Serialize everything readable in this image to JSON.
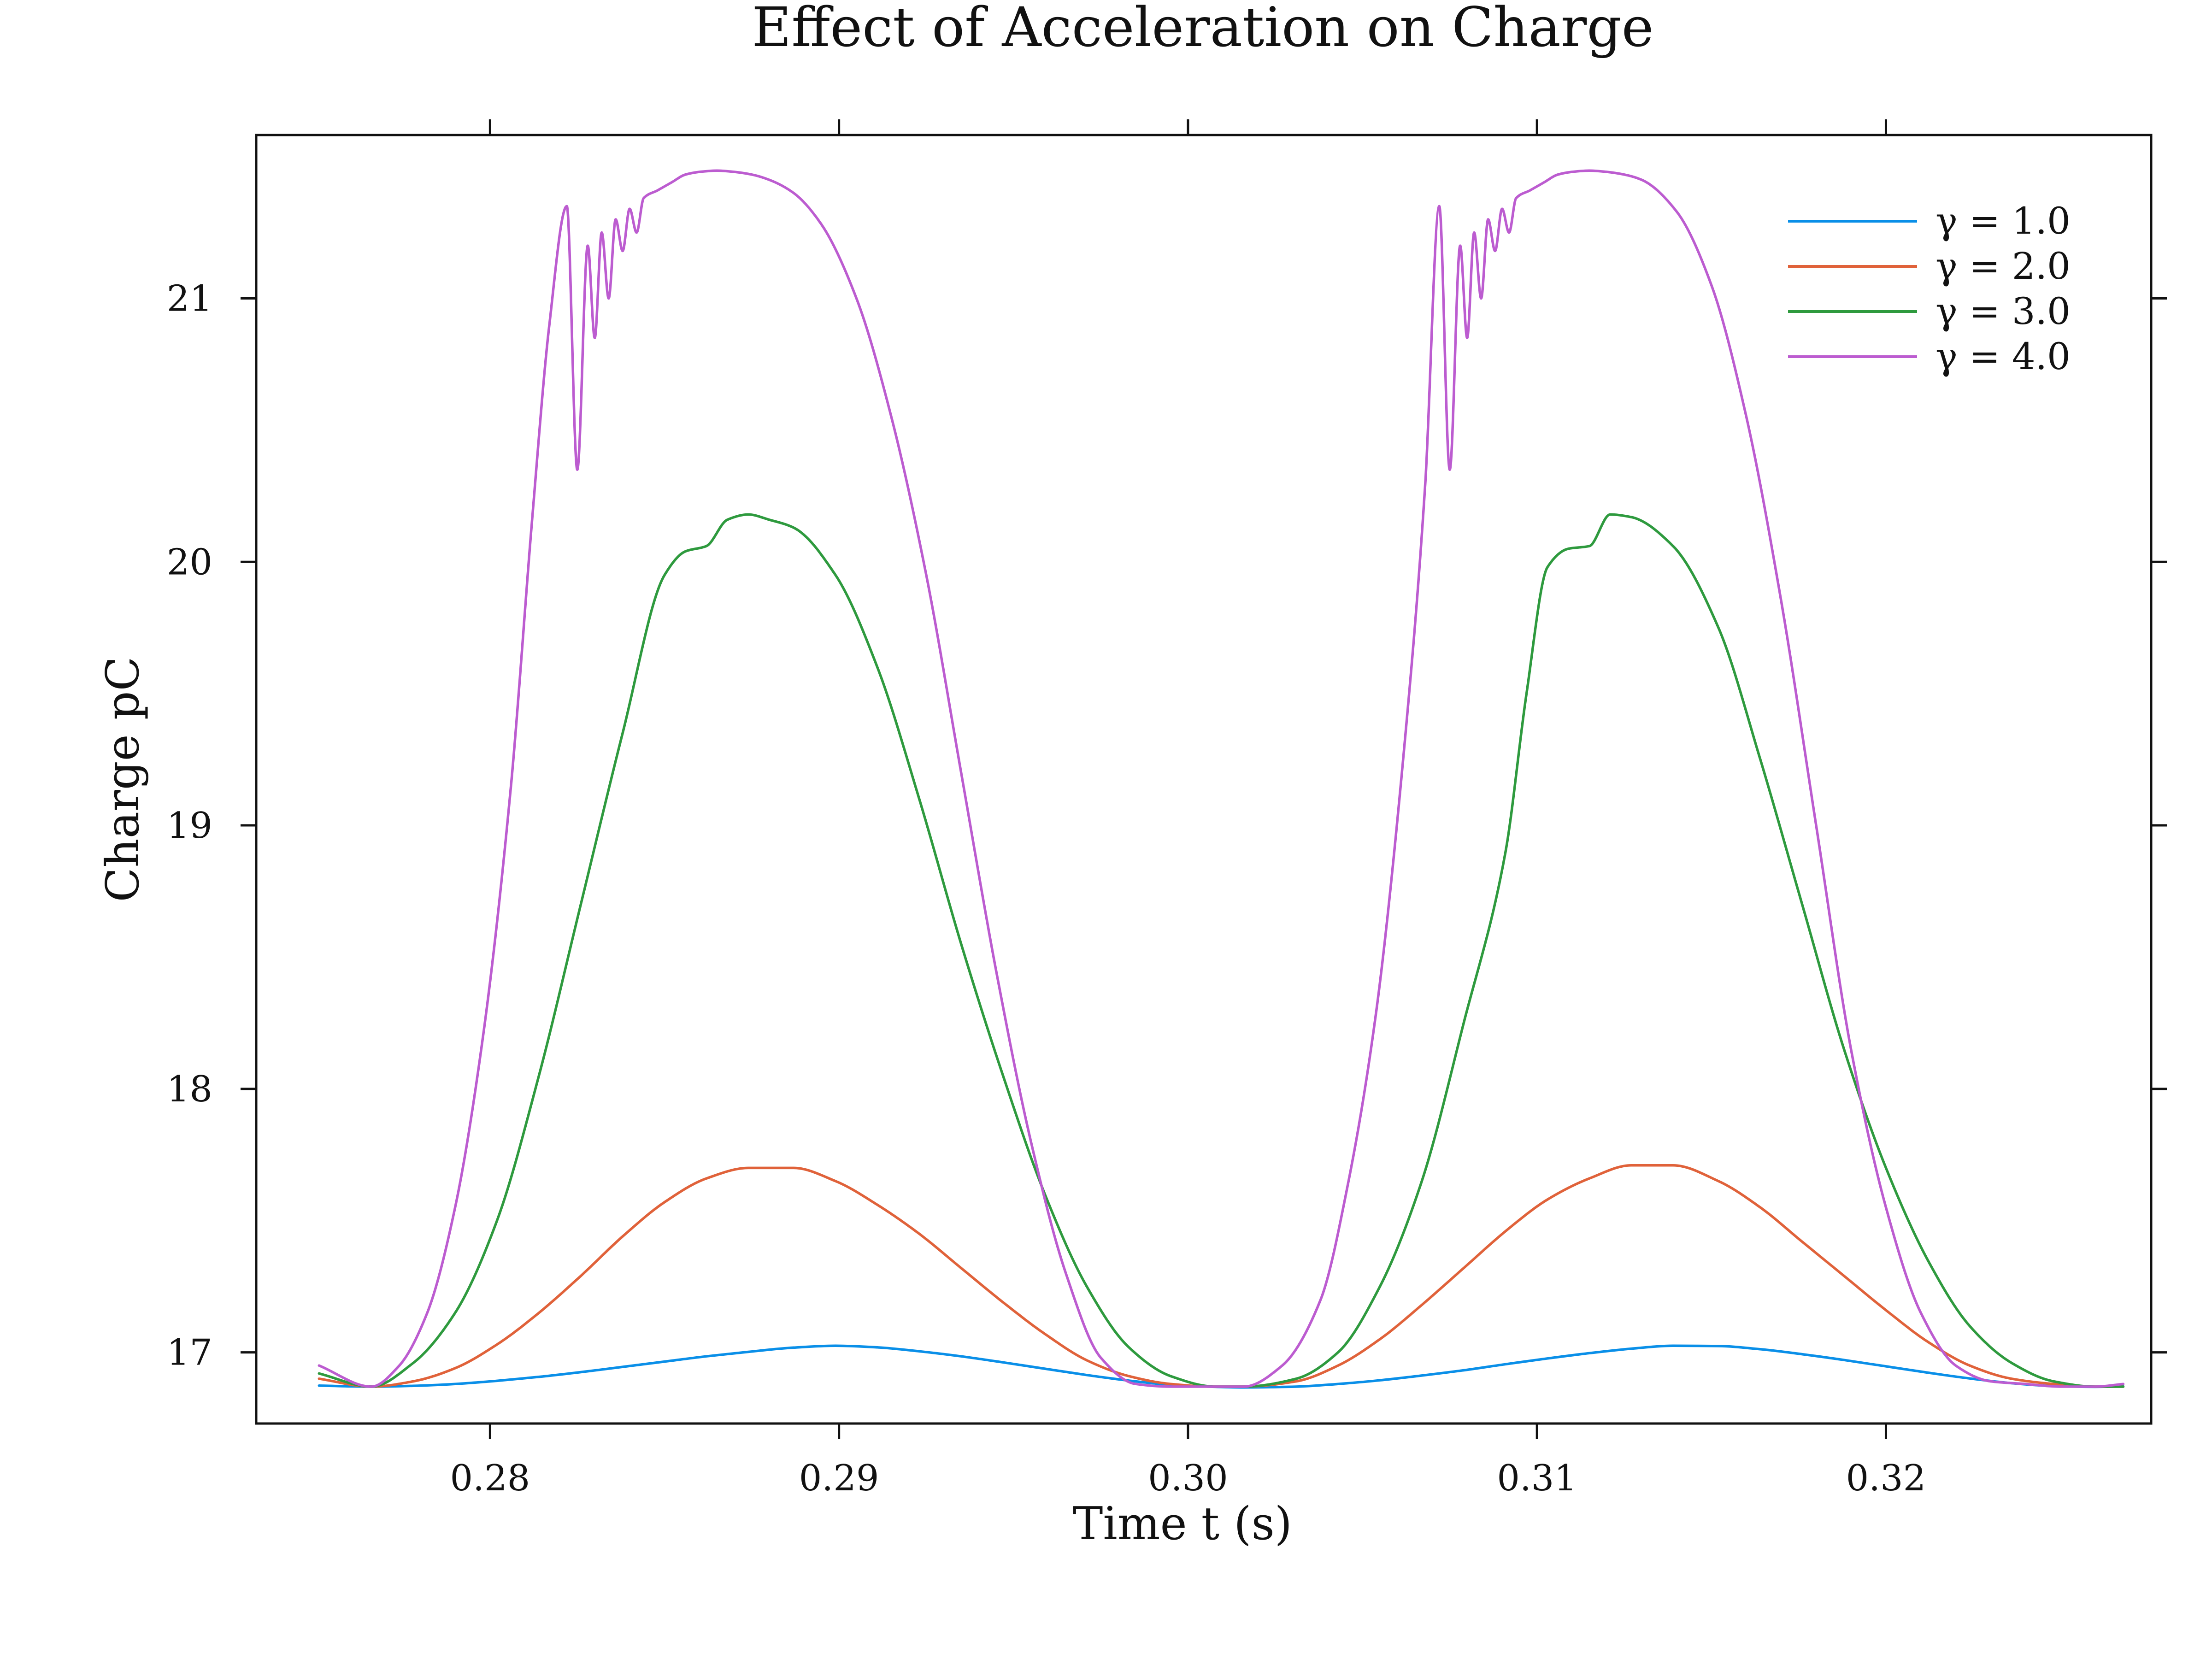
{
  "chart_data": {
    "type": "line",
    "title": "Effect of Acceleration on Charge",
    "xlabel": "Time t (s)",
    "ylabel": "Charge pC",
    "xlim": [
      0.2733,
      0.3276
    ],
    "ylim": [
      16.73,
      21.62
    ],
    "xticks": [
      0.28,
      0.29,
      0.3,
      0.31,
      0.32
    ],
    "xtick_labels": [
      "0.28",
      "0.29",
      "0.30",
      "0.31",
      "0.32"
    ],
    "yticks": [
      17,
      18,
      19,
      20,
      21
    ],
    "ytick_labels": [
      "17",
      "18",
      "19",
      "20",
      "21"
    ],
    "grid": false,
    "legend_position": "top-right",
    "series": [
      {
        "name": "γ = 1.0",
        "color": "#0a8fe8",
        "x": [
          0.2751,
          0.2766,
          0.2778,
          0.279,
          0.2802,
          0.2814,
          0.2826,
          0.2838,
          0.285,
          0.2862,
          0.2874,
          0.2887,
          0.2899,
          0.2911,
          0.2923,
          0.2935,
          0.2947,
          0.2959,
          0.2971,
          0.2983,
          0.2995,
          0.3008,
          0.3016,
          0.3031,
          0.3043,
          0.3055,
          0.3067,
          0.3079,
          0.3091,
          0.3103,
          0.3115,
          0.3127,
          0.3139,
          0.3152,
          0.3164,
          0.3176,
          0.3188,
          0.32,
          0.3212,
          0.3224,
          0.3236,
          0.3248,
          0.326,
          0.3268
        ],
        "y": [
          16.874,
          16.87,
          16.873,
          16.88,
          16.892,
          16.907,
          16.925,
          16.945,
          16.965,
          16.985,
          17.002,
          17.018,
          17.025,
          17.019,
          17.004,
          16.985,
          16.962,
          16.938,
          16.914,
          16.893,
          16.877,
          16.869,
          16.867,
          16.87,
          16.88,
          16.894,
          16.912,
          16.932,
          16.955,
          16.977,
          16.997,
          17.014,
          17.025,
          17.024,
          17.012,
          16.993,
          16.971,
          16.947,
          16.923,
          16.901,
          16.883,
          16.872,
          16.869,
          16.871
        ]
      },
      {
        "name": "γ = 2.0",
        "color": "#e0623a",
        "x": [
          0.2751,
          0.2766,
          0.2778,
          0.279,
          0.2802,
          0.2814,
          0.2826,
          0.2838,
          0.285,
          0.2862,
          0.2874,
          0.2887,
          0.2899,
          0.2911,
          0.2923,
          0.2935,
          0.2947,
          0.2959,
          0.2971,
          0.2983,
          0.2995,
          0.3008,
          0.3016,
          0.3031,
          0.3043,
          0.3055,
          0.3067,
          0.3079,
          0.3091,
          0.3103,
          0.3115,
          0.3127,
          0.3139,
          0.3152,
          0.3164,
          0.3176,
          0.3188,
          0.32,
          0.3212,
          0.3224,
          0.3236,
          0.3248,
          0.326,
          0.3268
        ],
        "y": [
          16.9,
          16.87,
          16.89,
          16.94,
          17.03,
          17.15,
          17.29,
          17.44,
          17.57,
          17.66,
          17.7,
          17.7,
          17.65,
          17.56,
          17.45,
          17.32,
          17.19,
          17.07,
          16.97,
          16.91,
          16.88,
          16.87,
          16.87,
          16.89,
          16.95,
          17.05,
          17.18,
          17.32,
          17.46,
          17.58,
          17.66,
          17.71,
          17.71,
          17.65,
          17.55,
          17.42,
          17.29,
          17.16,
          17.04,
          16.95,
          16.9,
          16.88,
          16.87,
          16.87
        ]
      },
      {
        "name": "γ = 3.0",
        "color": "#2e9a3e",
        "x": [
          0.2751,
          0.2766,
          0.2778,
          0.279,
          0.2802,
          0.2814,
          0.2826,
          0.2838,
          0.285,
          0.2856,
          0.2862,
          0.2868,
          0.2874,
          0.288,
          0.2887,
          0.2899,
          0.2911,
          0.2923,
          0.2935,
          0.2947,
          0.2959,
          0.2971,
          0.2983,
          0.2995,
          0.3008,
          0.3016,
          0.3031,
          0.3043,
          0.3055,
          0.3067,
          0.3079,
          0.3091,
          0.3097,
          0.3103,
          0.3109,
          0.3115,
          0.3121,
          0.3127,
          0.3139,
          0.3152,
          0.3164,
          0.3176,
          0.3188,
          0.32,
          0.3212,
          0.3224,
          0.3236,
          0.3248,
          0.326,
          0.3268
        ],
        "y": [
          16.92,
          16.87,
          16.96,
          17.15,
          17.5,
          18.05,
          18.7,
          19.35,
          19.95,
          20.04,
          20.06,
          20.16,
          20.18,
          20.16,
          20.13,
          19.95,
          19.6,
          19.1,
          18.55,
          18.05,
          17.6,
          17.25,
          17.02,
          16.91,
          16.87,
          16.87,
          16.9,
          17.0,
          17.25,
          17.65,
          18.25,
          18.9,
          19.5,
          19.98,
          20.05,
          20.06,
          20.18,
          20.17,
          20.06,
          19.75,
          19.25,
          18.7,
          18.15,
          17.7,
          17.35,
          17.1,
          16.96,
          16.89,
          16.87,
          16.87
        ]
      },
      {
        "name": "γ = 4.0",
        "color": "#bc5cd0",
        "x": [
          0.2751,
          0.2766,
          0.2774,
          0.2782,
          0.279,
          0.2798,
          0.2806,
          0.2812,
          0.2817,
          0.2822,
          0.2825,
          0.2828,
          0.283,
          0.2832,
          0.2834,
          0.2836,
          0.2838,
          0.284,
          0.2842,
          0.2844,
          0.2848,
          0.2852,
          0.2856,
          0.286,
          0.2865,
          0.287,
          0.2875,
          0.288,
          0.2887,
          0.2895,
          0.2905,
          0.2915,
          0.2925,
          0.2935,
          0.2945,
          0.2955,
          0.2965,
          0.2975,
          0.2985,
          0.2995,
          0.3005,
          0.3016,
          0.3027,
          0.3038,
          0.3046,
          0.3054,
          0.3062,
          0.3068,
          0.3072,
          0.3075,
          0.3078,
          0.308,
          0.3082,
          0.3084,
          0.3086,
          0.3088,
          0.309,
          0.3092,
          0.3094,
          0.3098,
          0.3102,
          0.3106,
          0.311,
          0.3115,
          0.312,
          0.3125,
          0.313,
          0.314,
          0.315,
          0.316,
          0.317,
          0.318,
          0.319,
          0.32,
          0.321,
          0.322,
          0.323,
          0.324,
          0.325,
          0.326,
          0.3268
        ],
        "y": [
          16.95,
          16.87,
          16.95,
          17.15,
          17.55,
          18.2,
          19.15,
          20.15,
          20.9,
          21.35,
          20.35,
          21.2,
          20.85,
          21.25,
          21.0,
          21.3,
          21.18,
          21.34,
          21.25,
          21.38,
          21.41,
          21.44,
          21.47,
          21.48,
          21.485,
          21.48,
          21.47,
          21.45,
          21.4,
          21.28,
          21.0,
          20.55,
          19.95,
          19.2,
          18.45,
          17.8,
          17.3,
          16.98,
          16.88,
          16.87,
          16.87,
          16.87,
          16.95,
          17.2,
          17.65,
          18.3,
          19.3,
          20.3,
          21.35,
          20.35,
          21.2,
          20.85,
          21.25,
          21.0,
          21.3,
          21.18,
          21.34,
          21.25,
          21.38,
          21.41,
          21.44,
          21.47,
          21.48,
          21.485,
          21.48,
          21.47,
          21.45,
          21.33,
          21.05,
          20.55,
          19.85,
          19.0,
          18.15,
          17.55,
          17.15,
          16.95,
          16.89,
          16.88,
          16.87,
          16.87,
          16.88
        ]
      }
    ]
  }
}
